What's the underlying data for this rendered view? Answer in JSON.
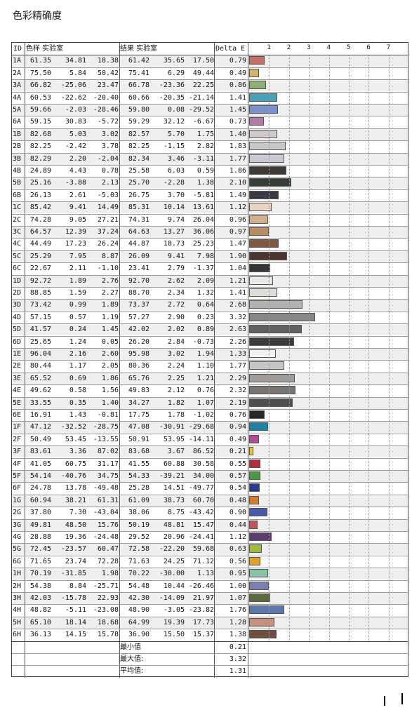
{
  "title": "色彩精确度",
  "headers": {
    "id": "ID",
    "sample": "色样 实验室",
    "result": "结果 实验室",
    "delta": "Delta E"
  },
  "chart_data": {
    "type": "bar",
    "xlim": [
      0,
      7
    ],
    "ticks": [
      "1",
      "2",
      "3",
      "4",
      "5",
      "6",
      "7"
    ],
    "rows": [
      {
        "id": "1A",
        "s": [
          "61.35",
          "34.81",
          "18.38"
        ],
        "r": [
          "61.42",
          "35.65",
          "17.50"
        ],
        "de": 0.79,
        "color": "#c46f6a"
      },
      {
        "id": "2A",
        "s": [
          "75.50",
          "5.84",
          "50.42"
        ],
        "r": [
          "75.41",
          "6.29",
          "49.44"
        ],
        "de": 0.49,
        "color": "#d3b46a"
      },
      {
        "id": "3A",
        "s": [
          "66.82",
          "-25.06",
          "23.47"
        ],
        "r": [
          "66.78",
          "-23.36",
          "22.25"
        ],
        "de": 0.86,
        "color": "#8fb073"
      },
      {
        "id": "4A",
        "s": [
          "60.53",
          "-22.62",
          "-20.40"
        ],
        "r": [
          "60.66",
          "-20.35",
          "-21.14"
        ],
        "de": 1.41,
        "color": "#4aa0b5"
      },
      {
        "id": "5A",
        "s": [
          "59.66",
          "-2.03",
          "-28.46"
        ],
        "r": [
          "59.80",
          "0.08",
          "-29.52"
        ],
        "de": 1.45,
        "color": "#7b90c8"
      },
      {
        "id": "6A",
        "s": [
          "59.15",
          "30.83",
          "-5.72"
        ],
        "r": [
          "59.29",
          "32.12",
          "-6.67"
        ],
        "de": 0.73,
        "color": "#b07ca4"
      },
      {
        "id": "1B",
        "s": [
          "82.68",
          "5.03",
          "3.02"
        ],
        "r": [
          "82.57",
          "5.70",
          "1.75"
        ],
        "de": 1.4,
        "color": "#cfcacc"
      },
      {
        "id": "2B",
        "s": [
          "82.25",
          "-2.42",
          "3.78"
        ],
        "r": [
          "82.25",
          "-1.15",
          "2.82"
        ],
        "de": 1.83,
        "color": "#c8c8c8"
      },
      {
        "id": "3B",
        "s": [
          "82.29",
          "2.20",
          "-2.04"
        ],
        "r": [
          "82.34",
          "3.46",
          "-3.11"
        ],
        "de": 1.77,
        "color": "#cbcad2"
      },
      {
        "id": "4B",
        "s": [
          "24.89",
          "4.43",
          "0.78"
        ],
        "r": [
          "25.58",
          "6.03",
          "0.59"
        ],
        "de": 1.86,
        "color": "#3d3a3a"
      },
      {
        "id": "5B",
        "s": [
          "25.16",
          "-3.88",
          "2.13"
        ],
        "r": [
          "25.70",
          "-2.28",
          "1.38"
        ],
        "de": 2.1,
        "color": "#393d3a"
      },
      {
        "id": "6B",
        "s": [
          "26.13",
          "2.61",
          "-5.03"
        ],
        "r": [
          "26.75",
          "3.70",
          "-5.81"
        ],
        "de": 1.49,
        "color": "#3b3b44"
      },
      {
        "id": "1C",
        "s": [
          "85.42",
          "9.41",
          "14.49"
        ],
        "r": [
          "85.31",
          "10.14",
          "13.61"
        ],
        "de": 1.12,
        "color": "#ead4c4"
      },
      {
        "id": "2C",
        "s": [
          "74.28",
          "9.05",
          "27.21"
        ],
        "r": [
          "74.31",
          "9.74",
          "26.04"
        ],
        "de": 0.96,
        "color": "#d3ae8d"
      },
      {
        "id": "3C",
        "s": [
          "64.57",
          "12.39",
          "37.24"
        ],
        "r": [
          "64.63",
          "13.27",
          "36.06"
        ],
        "de": 0.97,
        "color": "#b88d5d"
      },
      {
        "id": "4C",
        "s": [
          "44.49",
          "17.23",
          "26.24"
        ],
        "r": [
          "44.87",
          "18.73",
          "25.23"
        ],
        "de": 1.47,
        "color": "#7f5840"
      },
      {
        "id": "5C",
        "s": [
          "25.29",
          "7.95",
          "8.87"
        ],
        "r": [
          "26.09",
          "9.41",
          "7.98"
        ],
        "de": 1.9,
        "color": "#4a3530"
      },
      {
        "id": "6C",
        "s": [
          "22.67",
          "2.11",
          "-1.10"
        ],
        "r": [
          "23.41",
          "2.79",
          "-1.37"
        ],
        "de": 1.04,
        "color": "#363536"
      },
      {
        "id": "1D",
        "s": [
          "92.72",
          "1.89",
          "2.76"
        ],
        "r": [
          "92.70",
          "2.62",
          "2.09"
        ],
        "de": 1.21,
        "color": "#eae8e6"
      },
      {
        "id": "2D",
        "s": [
          "88.85",
          "1.59",
          "2.27"
        ],
        "r": [
          "88.70",
          "2.34",
          "1.32"
        ],
        "de": 1.41,
        "color": "#deddda"
      },
      {
        "id": "3D",
        "s": [
          "73.42",
          "0.99",
          "1.89"
        ],
        "r": [
          "73.37",
          "2.72",
          "0.64"
        ],
        "de": 2.68,
        "color": "#b4b2b1"
      },
      {
        "id": "4D",
        "s": [
          "57.15",
          "0.57",
          "1.19"
        ],
        "r": [
          "57.27",
          "2.90",
          "0.23"
        ],
        "de": 3.32,
        "color": "#888787"
      },
      {
        "id": "5D",
        "s": [
          "41.57",
          "0.24",
          "1.45"
        ],
        "r": [
          "42.02",
          "2.02",
          "0.89"
        ],
        "de": 2.63,
        "color": "#626161"
      },
      {
        "id": "6D",
        "s": [
          "25.65",
          "1.24",
          "0.05"
        ],
        "r": [
          "26.20",
          "2.84",
          "-0.73"
        ],
        "de": 2.26,
        "color": "#3d3c3c"
      },
      {
        "id": "1E",
        "s": [
          "96.04",
          "2.16",
          "2.60"
        ],
        "r": [
          "95.98",
          "3.02",
          "1.94"
        ],
        "de": 1.33,
        "color": "#f3f1f0"
      },
      {
        "id": "2E",
        "s": [
          "80.44",
          "1.17",
          "2.05"
        ],
        "r": [
          "80.36",
          "2.24",
          "1.10"
        ],
        "de": 1.77,
        "color": "#c6c5c3"
      },
      {
        "id": "3E",
        "s": [
          "65.52",
          "0.69",
          "1.86"
        ],
        "r": [
          "65.76",
          "2.25",
          "1.21"
        ],
        "de": 2.29,
        "color": "#9e9d9b"
      },
      {
        "id": "4E",
        "s": [
          "49.62",
          "0.58",
          "1.56"
        ],
        "r": [
          "49.83",
          "2.12",
          "0.76"
        ],
        "de": 2.32,
        "color": "#757473"
      },
      {
        "id": "5E",
        "s": [
          "33.55",
          "0.35",
          "1.40"
        ],
        "r": [
          "34.27",
          "1.82",
          "1.07"
        ],
        "de": 2.19,
        "color": "#504f4f"
      },
      {
        "id": "6E",
        "s": [
          "16.91",
          "1.43",
          "-0.81"
        ],
        "r": [
          "17.75",
          "1.78",
          "-1.02"
        ],
        "de": 0.76,
        "color": "#282727"
      },
      {
        "id": "1F",
        "s": [
          "47.12",
          "-32.52",
          "-28.75"
        ],
        "r": [
          "47.08",
          "-30.91",
          "-29.68"
        ],
        "de": 0.94,
        "color": "#1f80a0"
      },
      {
        "id": "2F",
        "s": [
          "50.49",
          "53.45",
          "-13.55"
        ],
        "r": [
          "50.91",
          "53.95",
          "-14.11"
        ],
        "de": 0.49,
        "color": "#b44a96"
      },
      {
        "id": "3F",
        "s": [
          "83.61",
          "3.36",
          "87.02"
        ],
        "r": [
          "83.68",
          "3.67",
          "86.52"
        ],
        "de": 0.21,
        "color": "#e9c81c"
      },
      {
        "id": "4F",
        "s": [
          "41.05",
          "60.75",
          "31.17"
        ],
        "r": [
          "41.55",
          "60.88",
          "30.58"
        ],
        "de": 0.55,
        "color": "#b22d3a"
      },
      {
        "id": "5F",
        "s": [
          "54.14",
          "-40.76",
          "34.75"
        ],
        "r": [
          "54.33",
          "-39.21",
          "34.00"
        ],
        "de": 0.57,
        "color": "#4b9a43"
      },
      {
        "id": "6F",
        "s": [
          "24.78",
          "13.78",
          "-49.48"
        ],
        "r": [
          "25.28",
          "14.51",
          "-49.77"
        ],
        "de": 0.54,
        "color": "#2a3a8c"
      },
      {
        "id": "1G",
        "s": [
          "60.94",
          "38.21",
          "61.31"
        ],
        "r": [
          "61.09",
          "38.73",
          "60.70"
        ],
        "de": 0.48,
        "color": "#d77b2c"
      },
      {
        "id": "2G",
        "s": [
          "37.80",
          "7.30",
          "-43.04"
        ],
        "r": [
          "38.06",
          "8.75",
          "-43.42"
        ],
        "de": 0.9,
        "color": "#4a5aa8"
      },
      {
        "id": "3G",
        "s": [
          "49.81",
          "48.50",
          "15.76"
        ],
        "r": [
          "50.19",
          "48.81",
          "15.47"
        ],
        "de": 0.44,
        "color": "#c2545e"
      },
      {
        "id": "4G",
        "s": [
          "28.88",
          "19.36",
          "-24.48"
        ],
        "r": [
          "29.52",
          "20.96",
          "-24.41"
        ],
        "de": 1.12,
        "color": "#5a3c6e"
      },
      {
        "id": "5G",
        "s": [
          "72.45",
          "-23.57",
          "60.47"
        ],
        "r": [
          "72.58",
          "-22.20",
          "59.68"
        ],
        "de": 0.63,
        "color": "#9fbb3c"
      },
      {
        "id": "6G",
        "s": [
          "71.65",
          "23.74",
          "72.28"
        ],
        "r": [
          "71.63",
          "24.25",
          "71.12"
        ],
        "de": 0.56,
        "color": "#e3a12c"
      },
      {
        "id": "1H",
        "s": [
          "70.19",
          "-31.85",
          "1.98"
        ],
        "r": [
          "70.22",
          "-30.00",
          "1.13"
        ],
        "de": 0.95,
        "color": "#88c3a6"
      },
      {
        "id": "2H",
        "s": [
          "54.38",
          "8.84",
          "-25.71"
        ],
        "r": [
          "54.48",
          "10.44",
          "-26.46"
        ],
        "de": 1.0,
        "color": "#7c80b0"
      },
      {
        "id": "3H",
        "s": [
          "42.03",
          "-15.78",
          "22.93"
        ],
        "r": [
          "42.30",
          "-14.09",
          "21.97"
        ],
        "de": 1.07,
        "color": "#5b6a3e"
      },
      {
        "id": "4H",
        "s": [
          "48.82",
          "-5.11",
          "-23.08"
        ],
        "r": [
          "48.90",
          "-3.05",
          "-23.82"
        ],
        "de": 1.76,
        "color": "#5b76a8"
      },
      {
        "id": "5H",
        "s": [
          "65.10",
          "18.14",
          "18.68"
        ],
        "r": [
          "64.99",
          "19.39",
          "17.73"
        ],
        "de": 1.28,
        "color": "#c4917c"
      },
      {
        "id": "6H",
        "s": [
          "36.13",
          "14.15",
          "15.78"
        ],
        "r": [
          "36.90",
          "15.50",
          "15.37"
        ],
        "de": 1.38,
        "color": "#6b4e40"
      }
    ]
  },
  "footer": {
    "min_label": "最小值",
    "min_value": "0.21",
    "max_label": "最大值:",
    "max_value": "3.32",
    "avg_label": "平均值:",
    "avg_value": "1.31"
  }
}
